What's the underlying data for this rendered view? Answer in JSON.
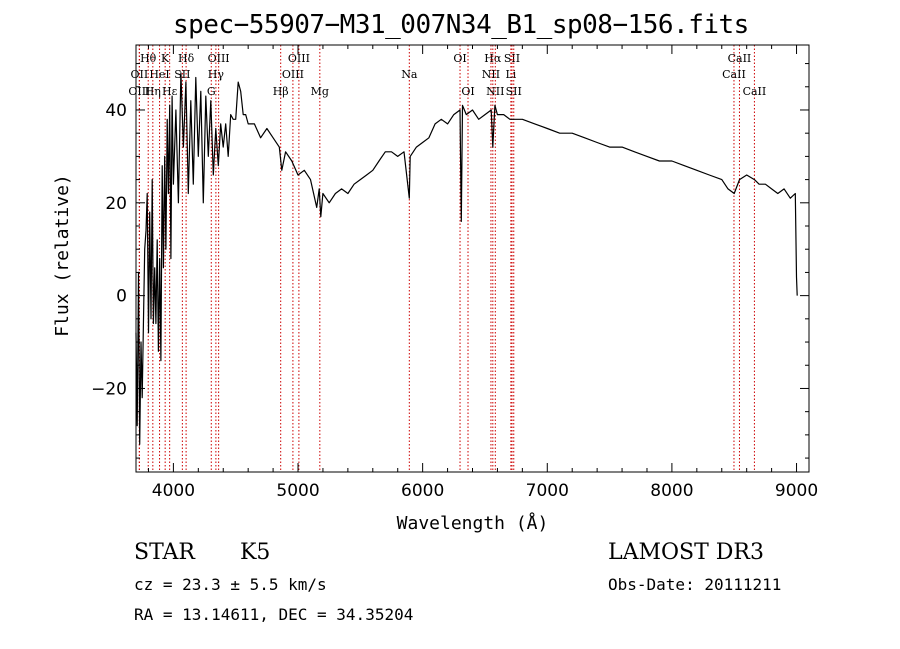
{
  "chart_data": {
    "type": "line",
    "title": "spec−55907−M31_007N34_B1_sp08−156.fits",
    "xlabel": "Wavelength (Å)",
    "ylabel": "Flux (relative)",
    "xlim": [
      3700,
      9100
    ],
    "ylim": [
      -38,
      54
    ],
    "xticks": [
      4000,
      5000,
      6000,
      7000,
      8000,
      9000
    ],
    "xtick_labels": [
      "4000",
      "5000",
      "6000",
      "7000",
      "8000",
      "9000"
    ],
    "yticks": [
      -20,
      0,
      20,
      40
    ],
    "ytick_labels": [
      "−20",
      "0",
      "20",
      "40"
    ],
    "grid": false,
    "series": [
      {
        "name": "spectrum",
        "x": [
          3700,
          3710,
          3720,
          3730,
          3740,
          3750,
          3760,
          3770,
          3780,
          3790,
          3800,
          3810,
          3820,
          3830,
          3840,
          3850,
          3860,
          3870,
          3880,
          3890,
          3900,
          3910,
          3920,
          3930,
          3940,
          3950,
          3960,
          3970,
          3980,
          3990,
          4000,
          4020,
          4040,
          4060,
          4080,
          4100,
          4120,
          4140,
          4160,
          4180,
          4200,
          4220,
          4240,
          4260,
          4280,
          4300,
          4320,
          4340,
          4360,
          4380,
          4400,
          4420,
          4440,
          4460,
          4480,
          4500,
          4520,
          4540,
          4560,
          4580,
          4600,
          4650,
          4700,
          4750,
          4800,
          4850,
          4870,
          4900,
          4950,
          5000,
          5050,
          5100,
          5150,
          5170,
          5183,
          5200,
          5250,
          5300,
          5350,
          5400,
          5450,
          5500,
          5550,
          5600,
          5650,
          5700,
          5750,
          5800,
          5850,
          5893,
          5900,
          5950,
          6000,
          6050,
          6100,
          6150,
          6200,
          6250,
          6300,
          6310,
          6320,
          6350,
          6400,
          6450,
          6500,
          6550,
          6563,
          6580,
          6600,
          6650,
          6700,
          6750,
          6800,
          6900,
          7000,
          7100,
          7200,
          7300,
          7400,
          7500,
          7600,
          7700,
          7800,
          7900,
          8000,
          8100,
          8200,
          8300,
          8400,
          8450,
          8500,
          8542,
          8600,
          8662,
          8700,
          8750,
          8800,
          8850,
          8900,
          8950,
          8990,
          9000,
          9005
        ],
        "y": [
          -8,
          -28,
          5,
          -32,
          -10,
          -22,
          -5,
          10,
          14,
          22,
          -8,
          18,
          -5,
          25,
          -6,
          6,
          -6,
          12,
          -12,
          8,
          -14,
          28,
          6,
          30,
          10,
          38,
          22,
          41,
          8,
          43,
          24,
          40,
          20,
          48,
          32,
          46,
          22,
          42,
          24,
          47,
          30,
          44,
          20,
          43,
          30,
          42,
          26,
          36,
          28,
          37,
          32,
          37,
          30,
          39,
          38,
          38,
          46,
          44,
          39,
          39,
          37,
          37,
          34,
          36,
          34,
          32,
          27,
          31,
          29,
          26,
          27,
          25,
          19,
          23,
          17,
          22,
          20,
          22,
          23,
          22,
          24,
          25,
          26,
          27,
          29,
          31,
          31,
          30,
          31,
          21,
          30,
          32,
          33,
          34,
          37,
          38,
          37,
          39,
          40,
          16,
          41,
          39,
          40,
          38,
          39,
          40,
          32,
          41,
          39,
          39,
          38,
          38,
          38,
          37,
          36,
          35,
          35,
          34,
          33,
          32,
          32,
          31,
          30,
          29,
          29,
          28,
          27,
          26,
          25,
          23,
          22,
          25,
          26,
          25,
          24,
          24,
          23,
          22,
          23,
          21,
          22,
          4,
          0
        ]
      }
    ],
    "lines": [
      {
        "name": "Hθ",
        "x": 3798,
        "row": 1
      },
      {
        "name": "OII",
        "x": 3727,
        "row": 2
      },
      {
        "name": "OIII",
        "x": 3727,
        "row": 3
      },
      {
        "name": "K",
        "x": 3934,
        "row": 1
      },
      {
        "name": "HeI",
        "x": 3889,
        "row": 2
      },
      {
        "name": "Hε",
        "x": 3970,
        "row": 3
      },
      {
        "name": "Hδ",
        "x": 4102,
        "row": 1
      },
      {
        "name": "SII",
        "x": 4072,
        "row": 2
      },
      {
        "name": "Hη",
        "x": 3835,
        "row": 3
      },
      {
        "name": "OIII",
        "x": 4363,
        "row": 1
      },
      {
        "name": "Hγ",
        "x": 4341,
        "row": 2
      },
      {
        "name": "G",
        "x": 4304,
        "row": 3
      },
      {
        "name": "OIII",
        "x": 5007,
        "row": 1
      },
      {
        "name": "OIII",
        "x": 4959,
        "row": 2
      },
      {
        "name": "Hβ",
        "x": 4861,
        "row": 3
      },
      {
        "name": "Mg",
        "x": 5175,
        "row": 3
      },
      {
        "name": "Na",
        "x": 5893,
        "row": 2
      },
      {
        "name": "OI",
        "x": 6300,
        "row": 1
      },
      {
        "name": "OI",
        "x": 6364,
        "row": 3
      },
      {
        "name": "Hα",
        "x": 6563,
        "row": 1
      },
      {
        "name": "NII",
        "x": 6548,
        "row": 2
      },
      {
        "name": "NII",
        "x": 6583,
        "row": 3
      },
      {
        "name": "SII",
        "x": 6717,
        "row": 1
      },
      {
        "name": "Li",
        "x": 6708,
        "row": 2
      },
      {
        "name": "SII",
        "x": 6731,
        "row": 3
      },
      {
        "name": "CaII",
        "x": 8542,
        "row": 1
      },
      {
        "name": "CaII",
        "x": 8498,
        "row": 2
      },
      {
        "name": "CaII",
        "x": 8662,
        "row": 3
      }
    ]
  },
  "info": {
    "class_label": "STAR",
    "subclass": "K5",
    "redshift": "cz = 23.3 ± 5.5 km/s",
    "coords": "RA =  13.14611, DEC =  34.35204",
    "survey": "LAMOST DR3",
    "obs_date": "Obs-Date: 20111211"
  },
  "colors": {
    "axes": "#000000",
    "spectrum": "#000000",
    "line_markers": "#cc0000",
    "background": "#ffffff"
  }
}
